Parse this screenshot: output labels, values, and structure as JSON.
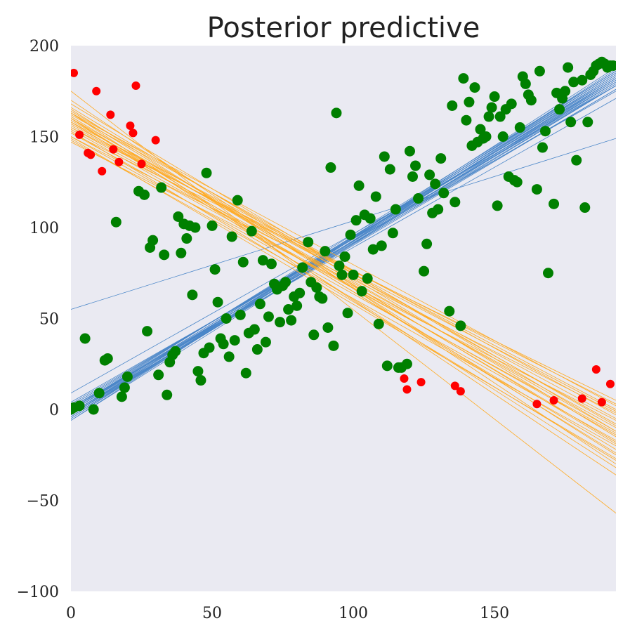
{
  "chart_data": {
    "type": "scatter",
    "title": "Posterior predictive",
    "xlabel": "",
    "ylabel": "",
    "xlim": [
      0,
      193
    ],
    "ylim": [
      -100,
      200
    ],
    "xticks": [
      0,
      50,
      100,
      150
    ],
    "yticks": [
      -100,
      -50,
      0,
      50,
      100,
      150,
      200
    ],
    "grid": false,
    "background": "#eaeaf2",
    "colors": {
      "green_points": "#008000",
      "red_points": "#ff0000",
      "blue_lines": "#4a86c8",
      "orange_lines": "#ffaa22"
    },
    "green_points": [
      [
        0,
        0
      ],
      [
        1,
        1
      ],
      [
        3,
        2
      ],
      [
        5,
        39
      ],
      [
        8,
        0
      ],
      [
        10,
        9
      ],
      [
        12,
        27
      ],
      [
        13,
        28
      ],
      [
        16,
        103
      ],
      [
        18,
        7
      ],
      [
        19,
        12
      ],
      [
        20,
        18
      ],
      [
        24,
        120
      ],
      [
        26,
        118
      ],
      [
        27,
        43
      ],
      [
        28,
        89
      ],
      [
        29,
        93
      ],
      [
        31,
        19
      ],
      [
        32,
        122
      ],
      [
        33,
        85
      ],
      [
        34,
        8
      ],
      [
        35,
        26
      ],
      [
        36,
        30
      ],
      [
        37,
        32
      ],
      [
        38,
        106
      ],
      [
        39,
        86
      ],
      [
        40,
        102
      ],
      [
        41,
        94
      ],
      [
        42,
        101
      ],
      [
        43,
        63
      ],
      [
        44,
        100
      ],
      [
        45,
        21
      ],
      [
        46,
        16
      ],
      [
        47,
        31
      ],
      [
        48,
        130
      ],
      [
        49,
        34
      ],
      [
        50,
        101
      ],
      [
        51,
        77
      ],
      [
        52,
        59
      ],
      [
        53,
        39
      ],
      [
        54,
        36
      ],
      [
        55,
        50
      ],
      [
        56,
        29
      ],
      [
        57,
        95
      ],
      [
        58,
        38
      ],
      [
        59,
        115
      ],
      [
        60,
        52
      ],
      [
        61,
        81
      ],
      [
        62,
        20
      ],
      [
        63,
        42
      ],
      [
        64,
        98
      ],
      [
        65,
        44
      ],
      [
        66,
        33
      ],
      [
        67,
        58
      ],
      [
        68,
        82
      ],
      [
        69,
        37
      ],
      [
        70,
        51
      ],
      [
        71,
        80
      ],
      [
        72,
        69
      ],
      [
        73,
        66
      ],
      [
        74,
        48
      ],
      [
        75,
        68
      ],
      [
        76,
        70
      ],
      [
        77,
        55
      ],
      [
        78,
        49
      ],
      [
        79,
        62
      ],
      [
        80,
        57
      ],
      [
        81,
        64
      ],
      [
        82,
        78
      ],
      [
        84,
        92
      ],
      [
        85,
        70
      ],
      [
        86,
        41
      ],
      [
        87,
        67
      ],
      [
        88,
        62
      ],
      [
        89,
        61
      ],
      [
        90,
        87
      ],
      [
        91,
        45
      ],
      [
        92,
        133
      ],
      [
        93,
        35
      ],
      [
        94,
        163
      ],
      [
        95,
        79
      ],
      [
        96,
        74
      ],
      [
        97,
        84
      ],
      [
        98,
        53
      ],
      [
        99,
        96
      ],
      [
        100,
        74
      ],
      [
        101,
        104
      ],
      [
        102,
        123
      ],
      [
        103,
        65
      ],
      [
        104,
        107
      ],
      [
        105,
        72
      ],
      [
        106,
        105
      ],
      [
        107,
        88
      ],
      [
        108,
        117
      ],
      [
        109,
        47
      ],
      [
        110,
        90
      ],
      [
        111,
        139
      ],
      [
        112,
        24
      ],
      [
        113,
        132
      ],
      [
        114,
        97
      ],
      [
        115,
        110
      ],
      [
        116,
        23
      ],
      [
        117,
        23
      ],
      [
        119,
        25
      ],
      [
        120,
        142
      ],
      [
        121,
        128
      ],
      [
        122,
        134
      ],
      [
        123,
        116
      ],
      [
        125,
        76
      ],
      [
        126,
        91
      ],
      [
        127,
        129
      ],
      [
        128,
        108
      ],
      [
        129,
        124
      ],
      [
        130,
        110
      ],
      [
        131,
        138
      ],
      [
        132,
        119
      ],
      [
        134,
        54
      ],
      [
        135,
        167
      ],
      [
        136,
        114
      ],
      [
        138,
        46
      ],
      [
        139,
        182
      ],
      [
        140,
        159
      ],
      [
        141,
        169
      ],
      [
        142,
        145
      ],
      [
        143,
        177
      ],
      [
        144,
        147
      ],
      [
        145,
        154
      ],
      [
        146,
        149
      ],
      [
        147,
        150
      ],
      [
        148,
        161
      ],
      [
        149,
        166
      ],
      [
        150,
        172
      ],
      [
        151,
        112
      ],
      [
        152,
        161
      ],
      [
        153,
        150
      ],
      [
        154,
        165
      ],
      [
        155,
        128
      ],
      [
        156,
        168
      ],
      [
        157,
        126
      ],
      [
        158,
        125
      ],
      [
        159,
        155
      ],
      [
        160,
        183
      ],
      [
        161,
        179
      ],
      [
        162,
        173
      ],
      [
        163,
        170
      ],
      [
        165,
        121
      ],
      [
        166,
        186
      ],
      [
        167,
        144
      ],
      [
        168,
        153
      ],
      [
        169,
        75
      ],
      [
        171,
        113
      ],
      [
        172,
        174
      ],
      [
        173,
        165
      ],
      [
        174,
        171
      ],
      [
        175,
        175
      ],
      [
        176,
        188
      ],
      [
        177,
        158
      ],
      [
        178,
        180
      ],
      [
        179,
        137
      ],
      [
        181,
        181
      ],
      [
        182,
        111
      ],
      [
        183,
        158
      ],
      [
        184,
        184
      ],
      [
        185,
        186
      ],
      [
        186,
        189
      ],
      [
        187,
        190
      ],
      [
        188,
        191
      ],
      [
        189,
        190
      ],
      [
        190,
        188
      ],
      [
        191,
        189
      ],
      [
        192,
        189
      ]
    ],
    "red_points": [
      [
        1,
        185
      ],
      [
        3,
        151
      ],
      [
        6,
        141
      ],
      [
        7,
        140
      ],
      [
        9,
        175
      ],
      [
        11,
        131
      ],
      [
        14,
        162
      ],
      [
        15,
        143
      ],
      [
        17,
        136
      ],
      [
        21,
        156
      ],
      [
        22,
        152
      ],
      [
        23,
        178
      ],
      [
        25,
        135
      ],
      [
        30,
        148
      ],
      [
        118,
        17
      ],
      [
        119,
        11
      ],
      [
        124,
        15
      ],
      [
        136,
        13
      ],
      [
        138,
        10
      ],
      [
        165,
        3
      ],
      [
        171,
        5
      ],
      [
        181,
        6
      ],
      [
        186,
        22
      ],
      [
        188,
        4
      ],
      [
        191,
        14
      ]
    ],
    "blue_lines": [
      [
        -3,
        186
      ],
      [
        -5,
        188
      ],
      [
        -2,
        184
      ],
      [
        0,
        182
      ],
      [
        -4,
        183
      ],
      [
        -1,
        185
      ],
      [
        2,
        180
      ],
      [
        -6,
        187
      ],
      [
        1,
        183
      ],
      [
        -3,
        181
      ],
      [
        0,
        179
      ],
      [
        -2,
        176
      ],
      [
        -1,
        178
      ],
      [
        -4,
        180
      ],
      [
        3,
        178
      ],
      [
        -5,
        184
      ],
      [
        2,
        181
      ],
      [
        -3,
        186
      ],
      [
        0,
        176
      ],
      [
        1,
        171
      ],
      [
        -6,
        182
      ],
      [
        -2,
        180
      ],
      [
        4,
        175
      ],
      [
        -1,
        182
      ],
      [
        0,
        186
      ],
      [
        -3,
        178
      ],
      [
        -4,
        185
      ],
      [
        9,
        178
      ],
      [
        55,
        149
      ]
    ],
    "orange_lines": [
      [
        148,
        -20
      ],
      [
        150,
        -17
      ],
      [
        152,
        -13
      ],
      [
        155,
        -10
      ],
      [
        157,
        -5
      ],
      [
        158,
        0
      ],
      [
        160,
        -8
      ],
      [
        162,
        -3
      ],
      [
        163,
        2
      ],
      [
        165,
        -25
      ],
      [
        166,
        -15
      ],
      [
        153,
        -28
      ],
      [
        158,
        -22
      ],
      [
        160,
        -32
      ],
      [
        163,
        -36
      ],
      [
        150,
        -2
      ],
      [
        147,
        -6
      ],
      [
        155,
        3
      ],
      [
        159,
        -12
      ],
      [
        161,
        -18
      ],
      [
        164,
        -9
      ],
      [
        149,
        -27
      ],
      [
        156,
        -1
      ],
      [
        168,
        -12
      ],
      [
        175,
        -57
      ],
      [
        170,
        -30
      ],
      [
        154,
        -14
      ],
      [
        160,
        -24
      ],
      [
        152,
        5
      ],
      [
        163,
        -19
      ]
    ]
  }
}
